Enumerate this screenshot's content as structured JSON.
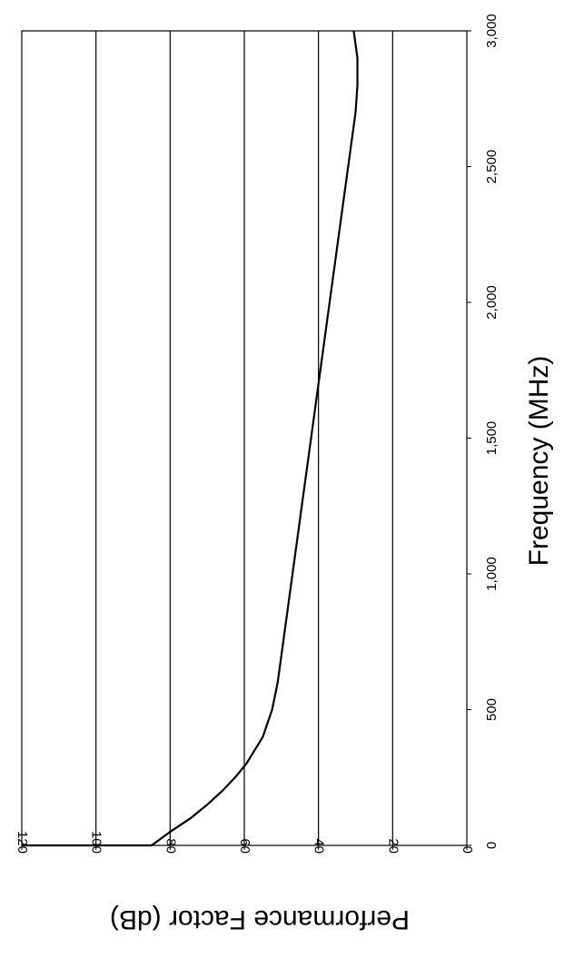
{
  "chart_data": {
    "type": "line",
    "title": "",
    "xlabel": "Frequency (MHz)",
    "ylabel": "Performance Factor (dB)",
    "xlim": [
      0,
      3000
    ],
    "ylim": [
      0,
      120
    ],
    "x_ticks": [
      0,
      500,
      1000,
      1500,
      2000,
      2500,
      3000
    ],
    "x_tick_labels": [
      "0",
      "500",
      "1,000",
      "1,500",
      "2,000",
      "2,500",
      "3,000"
    ],
    "y_ticks": [
      0,
      20,
      40,
      60,
      80,
      100,
      120
    ],
    "y_tick_labels": [
      "0",
      "20",
      "40",
      "60",
      "80",
      "100",
      "120"
    ],
    "grid": "horizontal gridlines at y ticks",
    "orientation": "rotated 90 degrees clockwise",
    "series": [
      {
        "x": [
          0,
          50,
          100,
          150,
          200,
          250,
          300,
          400,
          500,
          600,
          700,
          800,
          1000,
          1200,
          1400,
          1600,
          1800,
          2000,
          2200,
          2400,
          2600,
          2700,
          2800,
          2900,
          3000
        ],
        "values": [
          85,
          80,
          74.5,
          70,
          66,
          62.5,
          59.5,
          55,
          52.5,
          51,
          50,
          49,
          47,
          45,
          43,
          41,
          39,
          37,
          35,
          33,
          31,
          30,
          29.5,
          29.5,
          30.5
        ]
      }
    ],
    "axis_color": "#000000",
    "line_color": "#000000"
  }
}
